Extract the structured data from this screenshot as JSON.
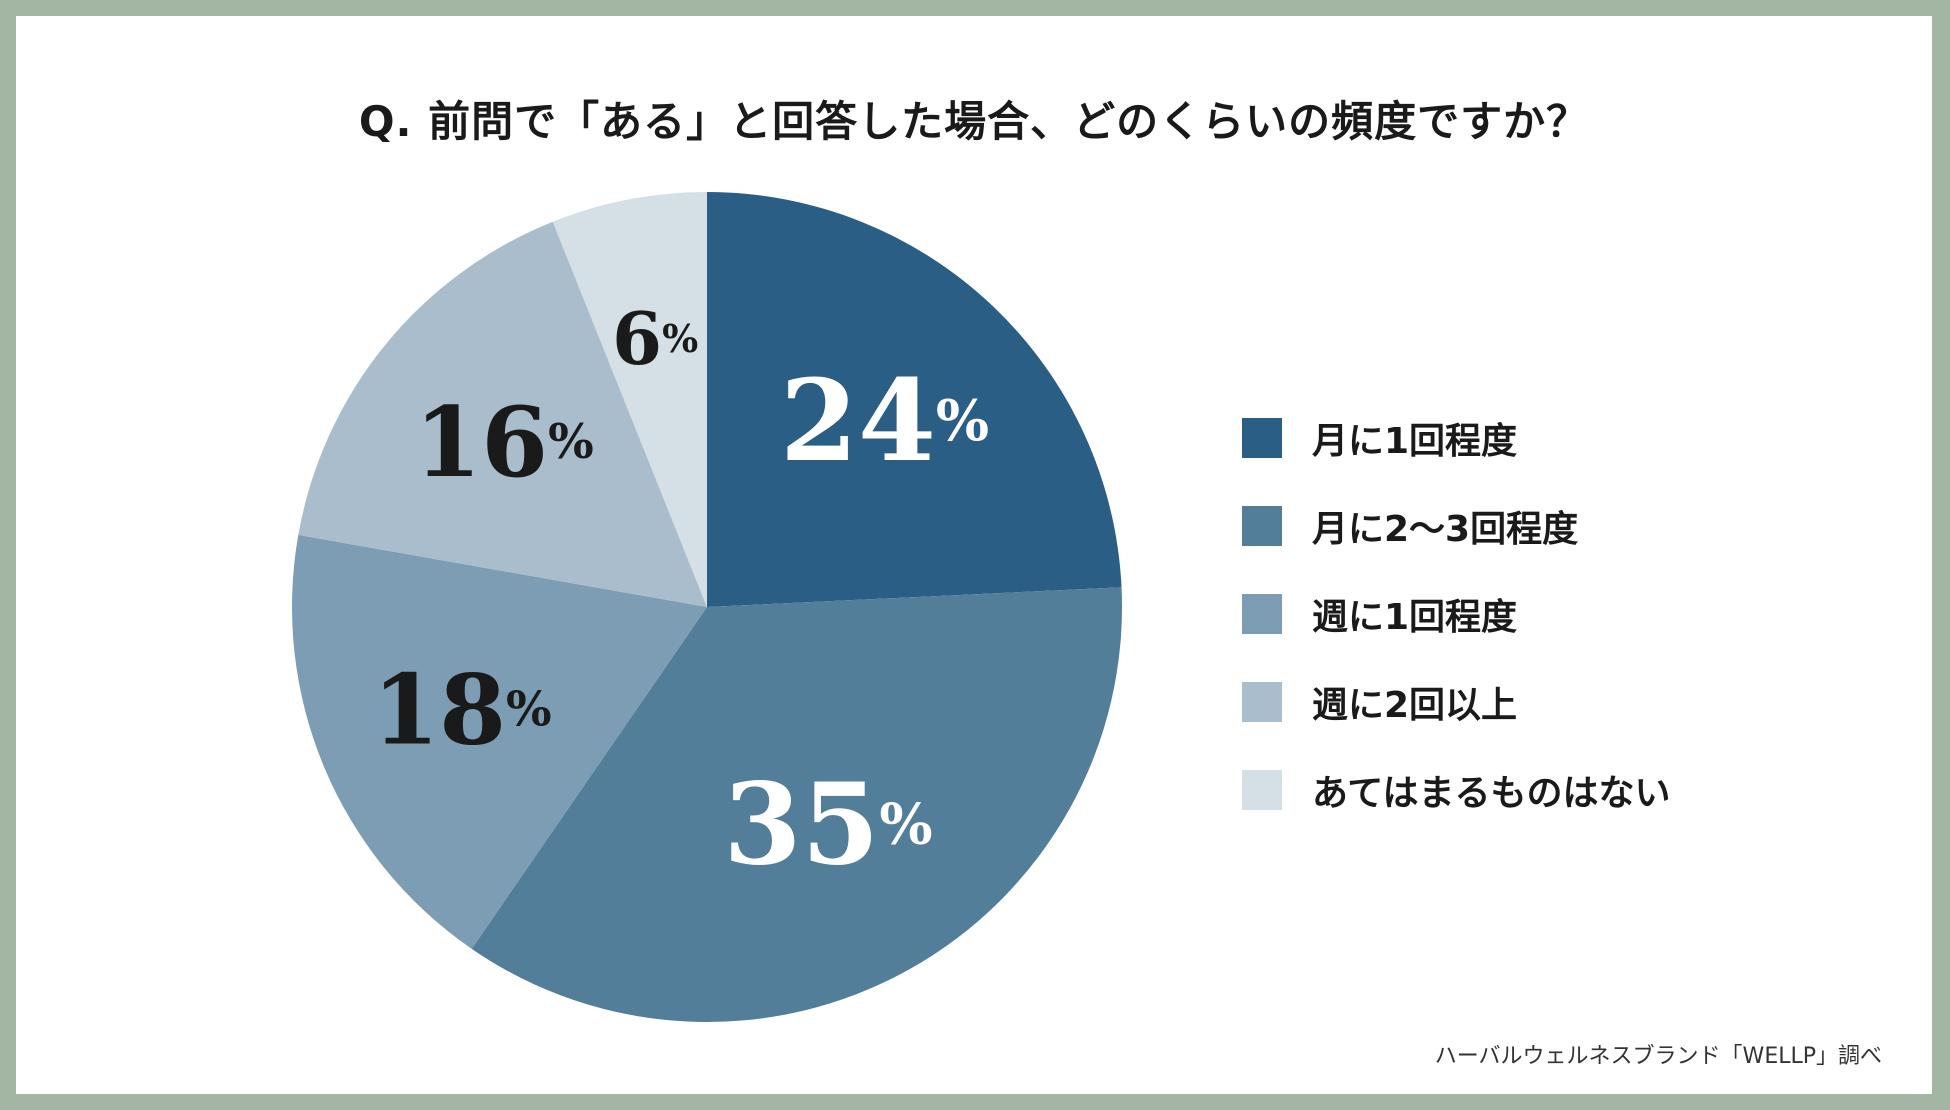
{
  "chart_data": {
    "type": "pie",
    "title": "Q. 前問で「ある」と回答した場合、どのくらいの頻度ですか？",
    "unit": "%",
    "categories": [
      "月に1回程度",
      "月に2〜3回程度",
      "週に1回程度",
      "週に2回以上",
      "あてはまるものはない"
    ],
    "values": [
      24,
      35,
      18,
      16,
      6
    ],
    "colors": [
      "#2b5e84",
      "#527e9a",
      "#7c9db3",
      "#a9bdcc",
      "#d5dfe6"
    ],
    "label_colors": [
      "#ffffff",
      "#ffffff",
      "#1a1a1a",
      "#1a1a1a",
      "#1a1a1a"
    ],
    "legend_position": "right",
    "start": "top",
    "direction": "clockwise"
  },
  "source": "ハーバルウェルネスブランド「WELLP」調べ"
}
